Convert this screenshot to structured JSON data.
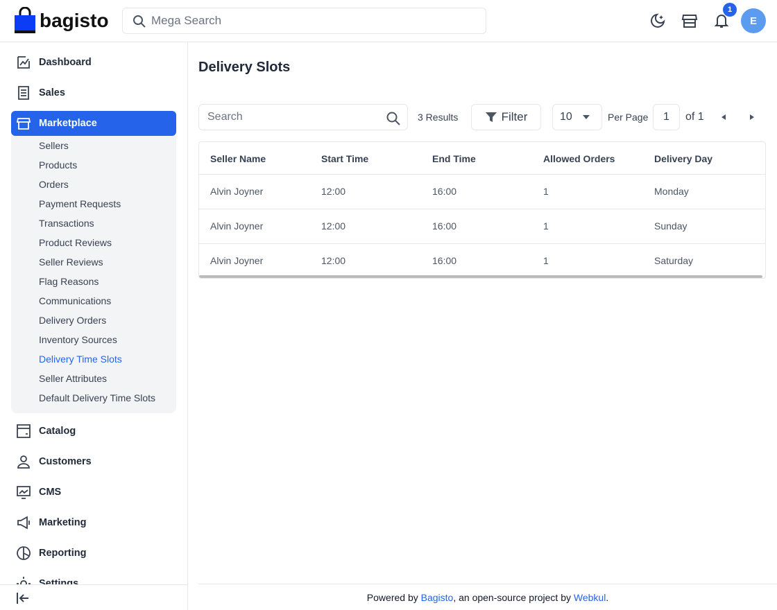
{
  "header": {
    "logo": "bagisto",
    "search_placeholder": "Mega Search",
    "notification_count": 1,
    "avatar": "E"
  },
  "sidebar": {
    "items": [
      "Dashboard",
      "Sales",
      "Marketplace",
      "Catalog",
      "Customers",
      "CMS",
      "Marketing",
      "Reporting",
      "Settings"
    ],
    "submenu": [
      "Sellers",
      "Products",
      "Orders",
      "Payment Requests",
      "Transactions",
      "Product Reviews",
      "Seller Reviews",
      "Flag Reasons",
      "Communications",
      "Delivery Orders",
      "Inventory Sources",
      "Delivery Time Slots",
      "Seller Attributes",
      "Default Delivery Time Slots"
    ]
  },
  "page": {
    "title": "Delivery Slots",
    "search_placeholder": "Search",
    "results": "3 Results",
    "filter": "Filter",
    "per_page_value": 10,
    "per_page": "Per Page",
    "page": 1,
    "of": "of 1"
  },
  "table": {
    "columns": [
      "Seller Name",
      "Start Time",
      "End Time",
      "Allowed Orders",
      "Delivery Day"
    ],
    "rows": [
      [
        "Alvin Joyner",
        "12:00",
        "16:00",
        1,
        "Monday"
      ],
      [
        "Alvin Joyner",
        "12:00",
        "16:00",
        1,
        "Sunday"
      ],
      [
        "Alvin Joyner",
        "12:00",
        "16:00",
        1,
        "Saturday"
      ]
    ]
  },
  "footer": {
    "prefix": "Powered by ",
    "link1": "Bagisto",
    "middle": ", an open-source project by ",
    "link2": "Webkul",
    "suffix": "."
  }
}
